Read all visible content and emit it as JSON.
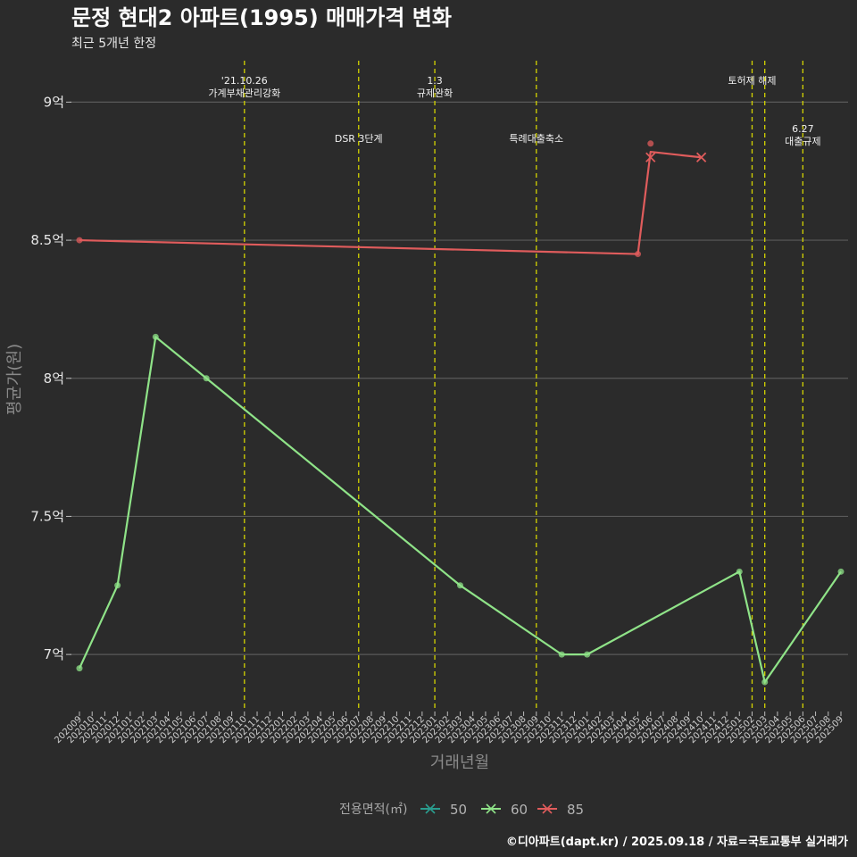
{
  "chart_data": {
    "type": "line",
    "title": "문정 현대2 아파트(1995) 매매가격 변화",
    "subtitle": "최근 5개년 한정",
    "xlabel": "거래년월",
    "ylabel": "평균가(원)",
    "caption": "©디아파트(dapt.kr) / 2025.09.18 / 자료=국토교통부 실거래가",
    "ylim": [
      6.8,
      9.15
    ],
    "yticks": [
      {
        "value": 7,
        "label": "7억"
      },
      {
        "value": 7.5,
        "label": "7.5억"
      },
      {
        "value": 8,
        "label": "8억"
      },
      {
        "value": 8.5,
        "label": "8.5억"
      },
      {
        "value": 9,
        "label": "9억"
      }
    ],
    "grid": true,
    "categories": [
      "202009",
      "202010",
      "202011",
      "202012",
      "202101",
      "202102",
      "202103",
      "202104",
      "202105",
      "202106",
      "202107",
      "202108",
      "202109",
      "202110",
      "202111",
      "202112",
      "202201",
      "202202",
      "202203",
      "202204",
      "202205",
      "202206",
      "202207",
      "202208",
      "202209",
      "202210",
      "202211",
      "202212",
      "202301",
      "202302",
      "202303",
      "202304",
      "202305",
      "202306",
      "202307",
      "202308",
      "202309",
      "202310",
      "202311",
      "202312",
      "202401",
      "202402",
      "202403",
      "202404",
      "202405",
      "202406",
      "202407",
      "202408",
      "202409",
      "202410",
      "202411",
      "202412",
      "202501",
      "202502",
      "202503",
      "202504",
      "202505",
      "202506",
      "202507",
      "202508",
      "202509"
    ],
    "legend": {
      "title": "전용면적(㎡)",
      "position": "bottom",
      "items": [
        {
          "name": "50",
          "color": "#2a9d8f"
        },
        {
          "name": "60",
          "color": "#8fe388"
        },
        {
          "name": "85",
          "color": "#e05c5c"
        }
      ]
    },
    "series": [
      {
        "name": "60",
        "color": "#8fe388",
        "points": [
          {
            "x": "202009",
            "y": 6.95
          },
          {
            "x": "202012",
            "y": 7.25
          },
          {
            "x": "202103",
            "y": 8.15
          },
          {
            "x": "202107",
            "y": 8.0
          },
          {
            "x": "202303",
            "y": 7.25
          },
          {
            "x": "202311",
            "y": 7.0
          },
          {
            "x": "202401",
            "y": 7.0
          },
          {
            "x": "202501",
            "y": 7.3
          },
          {
            "x": "202503",
            "y": 6.9
          },
          {
            "x": "202509",
            "y": 7.3
          }
        ],
        "scatter": [
          {
            "x": "202009",
            "y": 6.95
          },
          {
            "x": "202012",
            "y": 7.25
          },
          {
            "x": "202103",
            "y": 8.15
          },
          {
            "x": "202107",
            "y": 8.0
          },
          {
            "x": "202303",
            "y": 7.25
          },
          {
            "x": "202311",
            "y": 7.0
          },
          {
            "x": "202401",
            "y": 7.0
          },
          {
            "x": "202501",
            "y": 7.3
          },
          {
            "x": "202503",
            "y": 6.9
          },
          {
            "x": "202509",
            "y": 7.3
          }
        ],
        "crosses": []
      },
      {
        "name": "85",
        "color": "#e05c5c",
        "points": [
          {
            "x": "202009",
            "y": 8.5
          },
          {
            "x": "202405",
            "y": 8.45
          },
          {
            "x": "202406",
            "y": 8.82
          },
          {
            "x": "202410",
            "y": 8.8
          }
        ],
        "scatter": [
          {
            "x": "202009",
            "y": 8.5
          },
          {
            "x": "202405",
            "y": 8.45
          },
          {
            "x": "202406",
            "y": 8.85
          }
        ],
        "crosses": [
          {
            "x": "202406",
            "y": 8.8
          },
          {
            "x": "202410",
            "y": 8.8
          }
        ]
      }
    ],
    "events": [
      {
        "x": "202110",
        "lines": [
          "'21.10.26",
          "가계부채관리강화"
        ],
        "level": 1
      },
      {
        "x": "202207",
        "lines": [
          "DSR 3단계"
        ],
        "level": 2
      },
      {
        "x": "202301",
        "lines": [
          "1.3",
          "규제완화"
        ],
        "level": 1
      },
      {
        "x": "202309",
        "lines": [
          "특례대출축소"
        ],
        "level": 2
      },
      {
        "x": "202502",
        "lines": [
          "토허제 해제"
        ],
        "level": 1
      },
      {
        "x": "202503",
        "lines": [],
        "level": 1
      },
      {
        "x": "202506",
        "lines": [
          "6.27",
          "대출규제"
        ],
        "level": 3
      }
    ]
  }
}
